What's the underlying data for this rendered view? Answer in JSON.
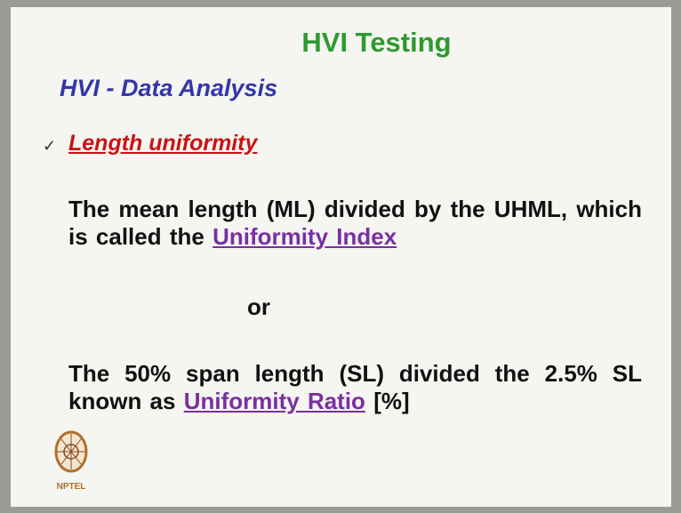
{
  "header": {
    "title": "HVI Testing",
    "subtitle": "HVI - Data Analysis"
  },
  "bullet": {
    "heading": "Length uniformity"
  },
  "paragraphs": [
    {
      "text": "The mean length (ML) divided by the UHML, which is called the",
      "link": "Uniformity Index"
    },
    {
      "text": "The 50% span length (SL) divided the 2.5% SL known as",
      "link": "Uniformity Ratio",
      "suffix": "[%]"
    }
  ],
  "separator": "or",
  "logo": {
    "label": "NPTEL"
  }
}
